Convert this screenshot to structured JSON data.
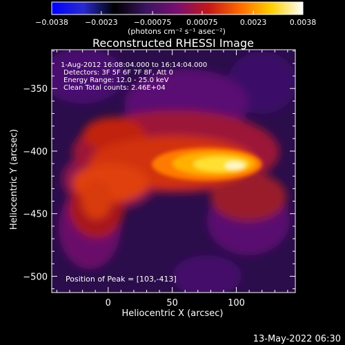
{
  "colorbar": {
    "ticks": [
      {
        "value": -0.0038,
        "label": "-0.0038"
      },
      {
        "value": -0.0023,
        "label": "-0.0023"
      },
      {
        "value": -0.00075,
        "label": "-0.00075"
      },
      {
        "value": 0.00075,
        "label": "0.00075"
      },
      {
        "value": 0.0023,
        "label": "0.0023"
      },
      {
        "value": 0.0038,
        "label": "0.0038"
      }
    ],
    "range": [
      -0.0038,
      0.0038
    ],
    "units_label": "(photons cm⁻² s⁻¹ asec⁻²)",
    "stops": [
      "#0000ff",
      "#2a2ad0",
      "#000000",
      "#3a1460",
      "#7a0f70",
      "#c41818",
      "#ff6a00",
      "#ffd000",
      "#ffffff"
    ]
  },
  "chart_data": {
    "type": "heatmap",
    "title": "Reconstructed RHESSI Image",
    "xlabel": "Heliocentric X (arcsec)",
    "ylabel": "Heliocentric Y (arcsec)",
    "xlim": [
      -44,
      146
    ],
    "ylim": [
      -513,
      -319
    ],
    "x_ticks": [
      {
        "value": 0,
        "label": "0"
      },
      {
        "value": 50,
        "label": "50"
      },
      {
        "value": 100,
        "label": "100"
      }
    ],
    "y_ticks": [
      {
        "value": -350,
        "label": "-350"
      },
      {
        "value": -400,
        "label": "-400"
      },
      {
        "value": -450,
        "label": "-450"
      },
      {
        "value": -500,
        "label": "-500"
      }
    ],
    "annotations": [
      "1-Aug-2012 16:08:04.000 to 16:14:04.000",
      "Detectors: 3F 5F 6F 7F 8F, Att 0",
      "Energy Range: 12.0 - 25.0 keV",
      "Clean    Total counts: 2.46E+04"
    ],
    "peak_label": "Position of Peak = [103,-413]",
    "peak": [
      103,
      -413
    ],
    "grid": false
  },
  "footer": {
    "timestamp": "13-May-2022 06:30"
  }
}
